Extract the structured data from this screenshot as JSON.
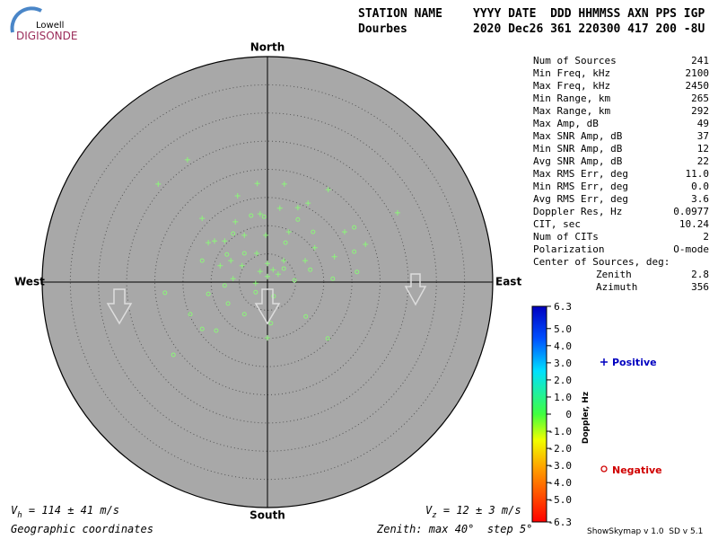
{
  "logo": {
    "line1": "Lowell",
    "line2": "DIGISONDE"
  },
  "header": {
    "station_label": "STATION NAME",
    "columns": "YYYY DATE  DDD HHMMSS AXN PPS IGP",
    "station": "Dourbes",
    "values": "2020 Dec26 361 220300 417 200 -8U"
  },
  "stats": {
    "rows": [
      [
        "Num of Sources",
        "241"
      ],
      [
        "Min Freq, kHz",
        "2100"
      ],
      [
        "Max Freq, kHz",
        "2450"
      ],
      [
        "Min Range, km",
        "265"
      ],
      [
        "Max Range, km",
        "292"
      ],
      [
        "Max Amp, dB",
        "49"
      ],
      [
        "Max SNR Amp, dB",
        "37"
      ],
      [
        "Min SNR Amp, dB",
        "12"
      ],
      [
        "Avg SNR Amp, dB",
        "22"
      ],
      [
        "Max RMS Err, deg",
        "11.0"
      ],
      [
        "Min RMS Err, deg",
        "0.0"
      ],
      [
        "Avg RMS Err, deg",
        "3.6"
      ],
      [
        "Doppler Res, Hz",
        "0.0977"
      ],
      [
        "CIT, sec",
        "10.24"
      ],
      [
        "Num of CITs",
        "2"
      ],
      [
        "Polarization",
        "O-mode"
      ]
    ],
    "center_title": "Center of Sources, deg:",
    "center_rows": [
      [
        "Zenith",
        "2.8"
      ],
      [
        "Azimuth",
        "356"
      ]
    ]
  },
  "compass": {
    "north": "North",
    "south": "South",
    "west": "West",
    "east": "East"
  },
  "skymap": {
    "zenith_max": 40,
    "zenith_step": 5,
    "color": "#8cf57a",
    "positive": {
      "x": [
        -14.2,
        -19.4,
        -1.8,
        3.0,
        10.8,
        7.2,
        -5.3,
        -11.6,
        -5.7,
        -1.3,
        2.2,
        5.4,
        23.1,
        -9.4,
        -7.6,
        -4.1,
        -0.3,
        3.8,
        13.7,
        17.4,
        -6.5,
        -1.9,
        0.0,
        1.0,
        2.9,
        -1.3,
        0.0,
        -4.5,
        -6.1,
        8.4,
        11.9,
        0.0,
        -10.5,
        -8.4,
        6.7,
        -2.1,
        1.9
      ],
      "y": [
        21.7,
        17.4,
        17.5,
        17.4,
        16.4,
        14.0,
        15.3,
        11.3,
        10.7,
        12.1,
        13.1,
        13.2,
        12.3,
        7.3,
        7.3,
        8.3,
        8.3,
        8.9,
        8.9,
        6.7,
        3.8,
        5.1,
        3.3,
        2.2,
        3.8,
        1.9,
        1.0,
        2.9,
        0.6,
        6.1,
        4.5,
        -9.9,
        7.0,
        2.9,
        3.8,
        -0.2,
        1.4
      ]
    },
    "negative": {
      "x": [
        -2.9,
        -0.6,
        5.4,
        8.1,
        3.2,
        -11.6,
        -7.2,
        -4.1,
        2.9,
        7.6,
        4.8,
        -18.2,
        -10.5,
        -7.0,
        -4.1,
        0.6,
        6.8,
        10.7,
        -9.1,
        -11.6,
        -16.7,
        -13.7,
        11.6,
        15.9,
        -7.6,
        1.1,
        -2.1,
        15.4,
        -6.1,
        15.4
      ],
      "y": [
        11.8,
        11.6,
        11.1,
        8.9,
        7.0,
        3.8,
        4.9,
        5.1,
        2.4,
        2.2,
        0.3,
        -1.9,
        -2.1,
        -3.8,
        -5.7,
        -7.3,
        -6.1,
        -10.0,
        -8.6,
        -8.3,
        -12.9,
        -5.7,
        0.6,
        1.8,
        -0.6,
        -2.5,
        -1.8,
        5.4,
        8.6,
        9.7
      ]
    }
  },
  "colorbar": {
    "label": "Doppler, Hz",
    "clim": [
      -6.3,
      6.3
    ],
    "ticks": [
      6.3,
      {
        "value": 5,
        "label": "5.0"
      },
      {
        "value": 4,
        "label": "4.0"
      },
      {
        "value": 3,
        "label": "3.0"
      },
      {
        "value": 2,
        "label": "2.0"
      },
      {
        "value": 1,
        "label": "1.0"
      },
      0,
      {
        "value": -1,
        "label": "-1.0"
      },
      {
        "value": -2,
        "label": "-2.0"
      },
      {
        "value": -3,
        "label": "-3.0"
      },
      {
        "value": -4,
        "label": "-4.0"
      },
      {
        "value": -5,
        "label": "-5.0"
      },
      -6.3
    ]
  },
  "legend": {
    "positive": "Positive",
    "negative": "Negative"
  },
  "footer": {
    "vh": [
      "V",
      "h",
      " = 114 ± 41 m/s"
    ],
    "vz": [
      "V",
      "z",
      " = 12 ± 3 m/s"
    ],
    "coords": "Geographic coordinates",
    "zenith_text": "Zenith: max 40°  step 5°",
    "version": "ShowSkymap v 1.0  SD v 5.1"
  }
}
